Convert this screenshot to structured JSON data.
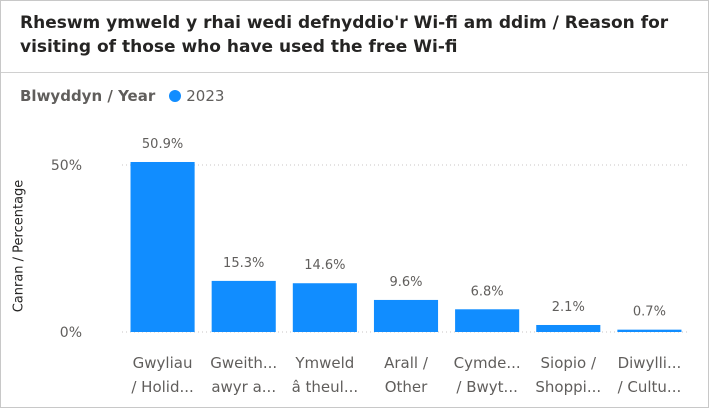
{
  "chart_data": {
    "type": "bar",
    "title": "Rheswm ymweld y rhai wedi defnyddio'r Wi-fi am ddim / Reason for visiting of those who have used the free Wi-fi",
    "legend": {
      "title": "Blwyddyn / Year",
      "placement": "top-left"
    },
    "ylabel": "Canran / Percentage",
    "xlabel": "",
    "ylim": [
      0,
      60
    ],
    "yticks": [
      {
        "value": 0,
        "label": "0%"
      },
      {
        "value": 50,
        "label": "50%"
      }
    ],
    "grid": true,
    "categories": [
      [
        "Gwyliau",
        "/ Holid..."
      ],
      [
        "Gweith...",
        "awyr a..."
      ],
      [
        "Ymweld",
        "â theul..."
      ],
      [
        "Arall /",
        "Other"
      ],
      [
        "Cymde...",
        "/ Bwyt..."
      ],
      [
        "Siopio /",
        "Shoppi..."
      ],
      [
        "Diwylli...",
        "/ Cultu..."
      ]
    ],
    "series": [
      {
        "name": "2023",
        "color": "#118dff",
        "values": [
          50.9,
          15.3,
          14.6,
          9.6,
          6.8,
          2.1,
          0.7
        ],
        "labels": [
          "50.9%",
          "15.3%",
          "14.6%",
          "9.6%",
          "6.8%",
          "2.1%",
          "0.7%"
        ]
      }
    ]
  }
}
